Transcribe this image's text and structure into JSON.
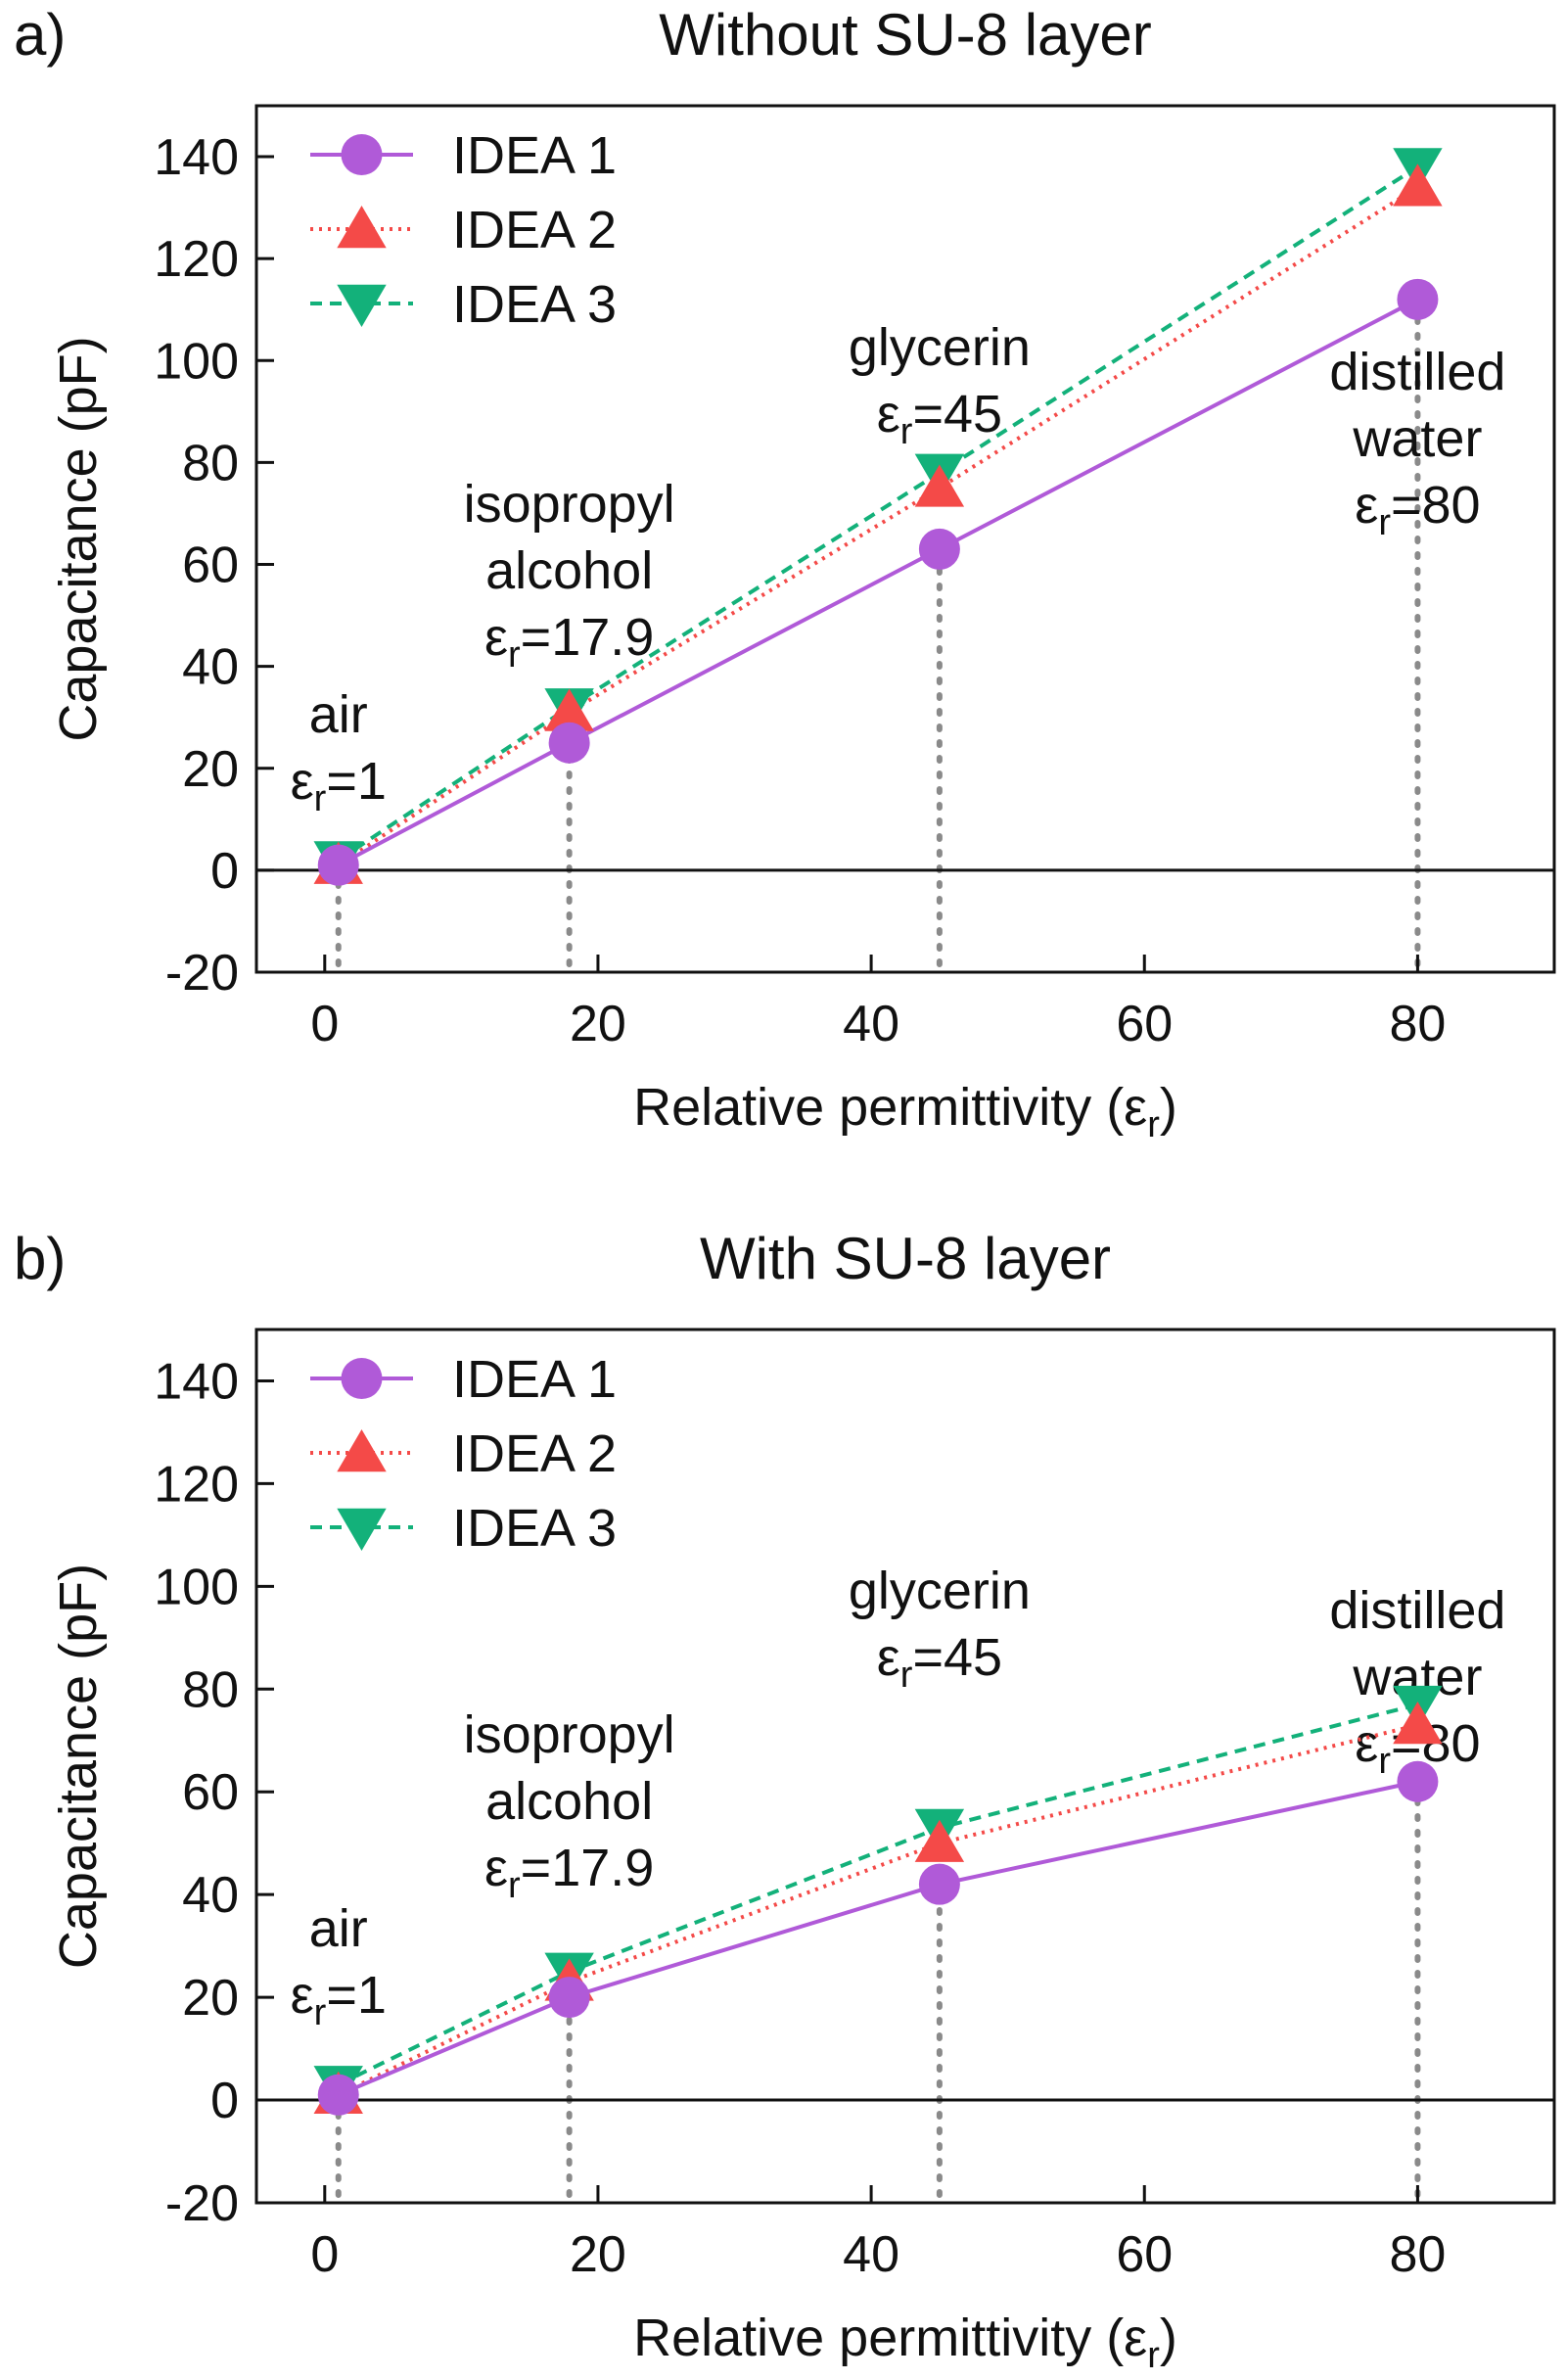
{
  "chart_data": [
    {
      "type": "line",
      "panel_label": "a)",
      "title": "Without SU-8 layer",
      "xlabel": "Relative permittivity (ε",
      "xlabel_sub": "r",
      "xlabel_suffix": ")",
      "ylabel": "Capacitance (pF)",
      "xlim": [
        -5,
        90
      ],
      "ylim": [
        -20,
        150
      ],
      "xticks": [
        0,
        20,
        40,
        60,
        80
      ],
      "yticks": [
        -20,
        0,
        20,
        40,
        60,
        80,
        100,
        120,
        140
      ],
      "legend_position": "top-left",
      "series": [
        {
          "name": "IDEA 1",
          "marker": "circle",
          "line": "solid",
          "color": "#b05ad8",
          "x": [
            1,
            17.9,
            45,
            80
          ],
          "y": [
            1,
            25,
            63,
            112
          ]
        },
        {
          "name": "IDEA 2",
          "marker": "triangle-up",
          "line": "dotted",
          "color": "#f44a48",
          "x": [
            1,
            17.9,
            45,
            80
          ],
          "y": [
            1,
            31,
            75,
            134
          ]
        },
        {
          "name": "IDEA 3",
          "marker": "triangle-down",
          "line": "dashed",
          "color": "#13b17a",
          "x": [
            1,
            17.9,
            45,
            80
          ],
          "y": [
            2,
            32,
            78,
            138
          ]
        }
      ],
      "annotations": [
        {
          "name": "air",
          "x": 1,
          "lines": [
            "air"
          ],
          "eps_prefix": "ε",
          "eps_sub": "r",
          "eps_value": "=1"
        },
        {
          "name": "isopropyl-alcohol",
          "x": 17.9,
          "lines": [
            "isopropyl",
            "alcohol"
          ],
          "eps_prefix": "ε",
          "eps_sub": "r",
          "eps_value": "=17.9"
        },
        {
          "name": "glycerin",
          "x": 45,
          "lines": [
            "glycerin"
          ],
          "eps_prefix": "ε",
          "eps_sub": "r",
          "eps_value": "=45"
        },
        {
          "name": "distilled-water",
          "x": 80,
          "lines": [
            "distilled",
            "water"
          ],
          "eps_prefix": "ε",
          "eps_sub": "r",
          "eps_value": "=80"
        }
      ]
    },
    {
      "type": "line",
      "panel_label": "b)",
      "title": "With SU-8 layer",
      "xlabel": "Relative permittivity (ε",
      "xlabel_sub": "r",
      "xlabel_suffix": ")",
      "ylabel": "Capacitance (pF)",
      "xlim": [
        -5,
        90
      ],
      "ylim": [
        -20,
        150
      ],
      "xticks": [
        0,
        20,
        40,
        60,
        80
      ],
      "yticks": [
        -20,
        0,
        20,
        40,
        60,
        80,
        100,
        120,
        140
      ],
      "legend_position": "top-left",
      "series": [
        {
          "name": "IDEA 1",
          "marker": "circle",
          "line": "solid",
          "color": "#b05ad8",
          "x": [
            1,
            17.9,
            45,
            80
          ],
          "y": [
            1,
            20,
            42,
            62
          ]
        },
        {
          "name": "IDEA 2",
          "marker": "triangle-up",
          "line": "dotted",
          "color": "#f44a48",
          "x": [
            1,
            17.9,
            45,
            80
          ],
          "y": [
            1,
            23,
            50,
            73
          ]
        },
        {
          "name": "IDEA 3",
          "marker": "triangle-down",
          "line": "dashed",
          "color": "#13b17a",
          "x": [
            1,
            17.9,
            45,
            80
          ],
          "y": [
            3,
            25,
            53,
            77
          ]
        }
      ],
      "annotations": [
        {
          "name": "air",
          "x": 1,
          "lines": [
            "air"
          ],
          "eps_prefix": "ε",
          "eps_sub": "r",
          "eps_value": "=1"
        },
        {
          "name": "isopropyl-alcohol",
          "x": 17.9,
          "lines": [
            "isopropyl",
            "alcohol"
          ],
          "eps_prefix": "ε",
          "eps_sub": "r",
          "eps_value": "=17.9"
        },
        {
          "name": "glycerin",
          "x": 45,
          "lines": [
            "glycerin"
          ],
          "eps_prefix": "ε",
          "eps_sub": "r",
          "eps_value": "=45"
        },
        {
          "name": "distilled-water",
          "x": 80,
          "lines": [
            "distilled",
            "water"
          ],
          "eps_prefix": "ε",
          "eps_sub": "r",
          "eps_value": "=80"
        }
      ]
    }
  ]
}
